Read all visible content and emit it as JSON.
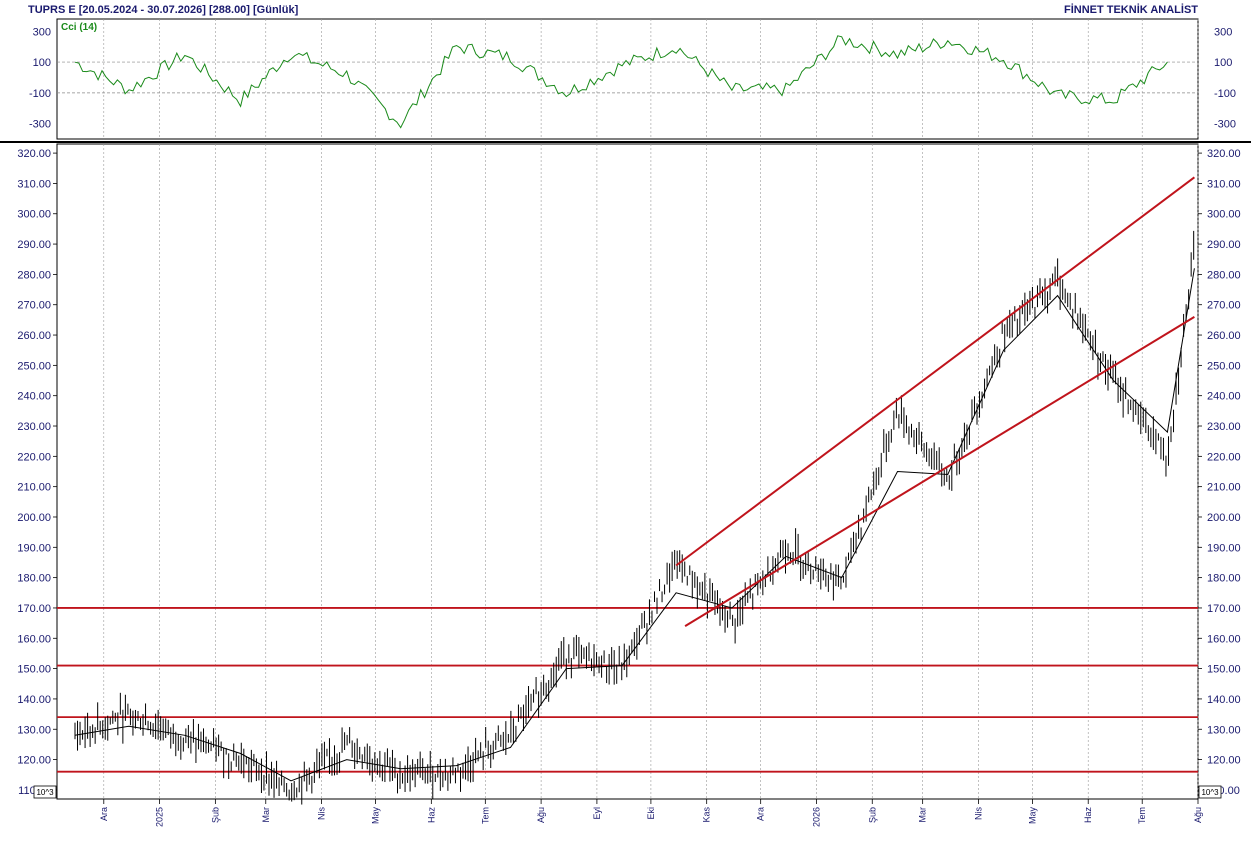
{
  "header": {
    "left": "TUPRS E  [20.05.2024 - 30.07.2026]  [288.00]  [Günlük]",
    "right": "FİNNET TEKNİK ANALİST"
  },
  "cci_panel": {
    "label": "Cci (14)",
    "tick_labels": [
      "300",
      "100",
      "-100",
      "-300"
    ],
    "tick_values": [
      300,
      100,
      -100,
      -300
    ]
  },
  "scale_note": "10^3",
  "x_tick_labels": [
    "Ara",
    "2025",
    "Şub",
    "Mar",
    "Nis",
    "May",
    "Haz",
    "Tem",
    "Ağu",
    "Eyl",
    "Eki",
    "Kas",
    "Ara",
    "2026",
    "Şub",
    "Mar",
    "Nis",
    "May",
    "Haz",
    "Tem",
    "Ağu"
  ],
  "colors": {
    "price": "#000000",
    "cci": "#1a8a1a",
    "levels": "#c0141c",
    "grid": "#999999",
    "label_cci": "#1a8a1a",
    "text": "#1a1a6e"
  },
  "chart_data": [
    {
      "type": "line",
      "title": "Cci (14)",
      "ylim": [
        -400,
        380
      ],
      "reference_lines": [
        100,
        -100
      ],
      "x": [
        "2024-11",
        "2024-12",
        "2025-01",
        "2025-02",
        "2025-03",
        "2025-04",
        "2025-05",
        "2025-06",
        "2025-07",
        "2025-08",
        "2025-09",
        "2025-10",
        "2025-11",
        "2025-12",
        "2026-01",
        "2026-02",
        "2026-03",
        "2026-04",
        "2026-05",
        "2026-06",
        "2026-07"
      ],
      "series": [
        {
          "values": [
            100,
            -80,
            150,
            -150,
            160,
            20,
            -300,
            200,
            130,
            -100,
            80,
            200,
            -80,
            -80,
            250,
            150,
            240,
            120,
            -120,
            -150,
            100
          ]
        }
      ]
    },
    {
      "type": "line",
      "ylim": [
        107,
        323
      ],
      "y_tick_labels": [
        "320.00",
        "310.00",
        "300.00",
        "290.00",
        "280.00",
        "270.00",
        "260.00",
        "250.00",
        "240.00",
        "230.00",
        "220.00",
        "210.00",
        "200.00",
        "190.00",
        "180.00",
        "170.00",
        "160.00",
        "150.00",
        "140.00",
        "130.00",
        "120.00",
        "110.00"
      ],
      "y_ticks": [
        320,
        310,
        300,
        290,
        280,
        270,
        260,
        250,
        240,
        230,
        220,
        210,
        200,
        190,
        180,
        170,
        160,
        150,
        140,
        130,
        120,
        110
      ],
      "x": [
        "2024-11",
        "2024-12",
        "2025-01",
        "2025-02",
        "2025-03",
        "2025-04",
        "2025-05",
        "2025-06",
        "2025-07",
        "2025-08",
        "2025-09",
        "2025-10",
        "2025-11",
        "2025-12",
        "2026-01",
        "2026-02",
        "2026-03",
        "2026-04",
        "2026-05",
        "2026-06",
        "2026-07",
        "2026-07-30"
      ],
      "series": [
        {
          "values": [
            128,
            135,
            127,
            120,
            110,
            125,
            115,
            116,
            128,
            155,
            150,
            185,
            165,
            190,
            178,
            235,
            212,
            260,
            278,
            245,
            220,
            288
          ]
        },
        {
          "values": [
            128,
            131,
            128,
            122,
            113,
            120,
            117,
            118,
            124,
            150,
            151,
            175,
            170,
            187,
            180,
            215,
            214,
            255,
            273,
            245,
            228,
            282
          ]
        }
      ],
      "horizontal_levels": [
        170,
        151,
        134,
        116
      ],
      "channel_lines": [
        {
          "from": [
            "2025-10",
            184
          ],
          "to": [
            "2026-07-30",
            312
          ]
        },
        {
          "from": [
            "2025-10-20",
            164
          ],
          "to": [
            "2026-07-30",
            266
          ]
        }
      ]
    }
  ]
}
